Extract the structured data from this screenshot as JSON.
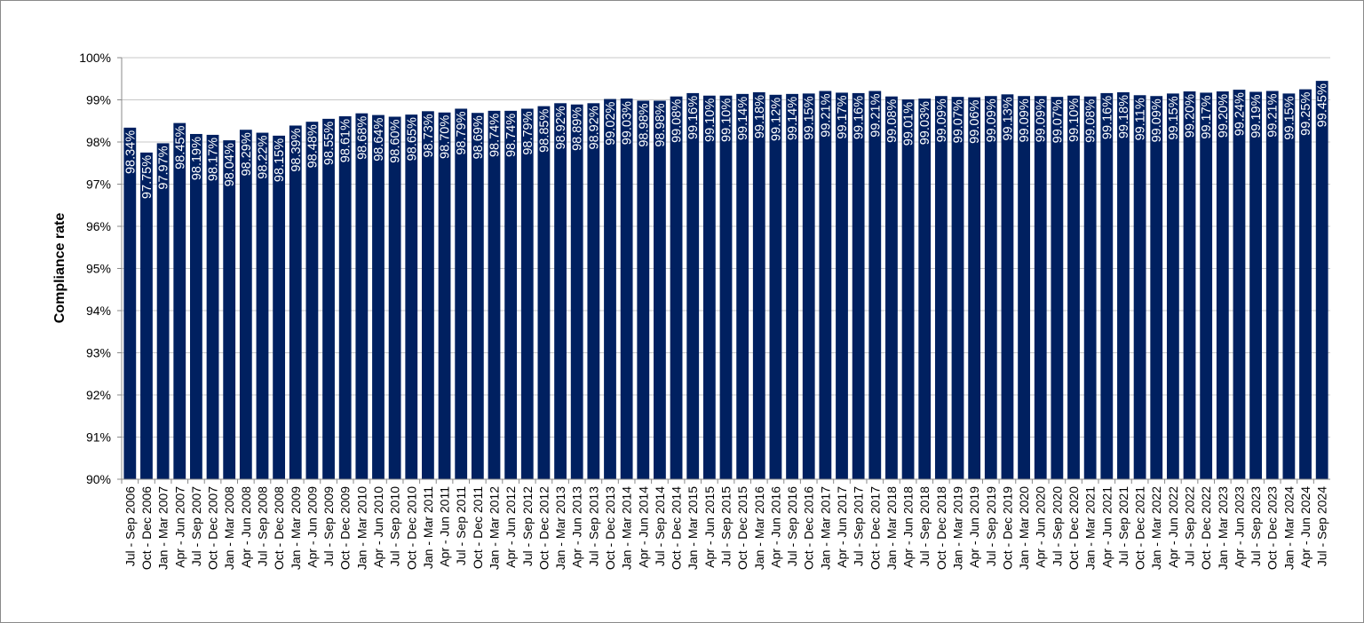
{
  "chart_data": {
    "type": "bar",
    "title": "",
    "xlabel": "",
    "ylabel": "Compliance rate",
    "ylim": [
      90,
      100
    ],
    "yticks": [
      "90%",
      "91%",
      "92%",
      "93%",
      "94%",
      "95%",
      "96%",
      "97%",
      "98%",
      "99%",
      "100%"
    ],
    "grid": true,
    "legend": "none",
    "categories": [
      "Jul - Sep 2006",
      "Oct - Dec 2006",
      "Jan - Mar 2007",
      "Apr - Jun 2007",
      "Jul - Sep 2007",
      "Oct - Dec 2007",
      "Jan - Mar 2008",
      "Apr - Jun 2008",
      "Jul - Sep 2008",
      "Oct - Dec 2008",
      "Jan - Mar 2009",
      "Apr - Jun 2009",
      "Jul - Sep 2009",
      "Oct - Dec 2009",
      "Jan - Mar 2010",
      "Apr - Jun 2010",
      "Jul - Sep 2010",
      "Oct - Dec 2010",
      "Jan - Mar 2011",
      "Apr - Jun 2011",
      "Jul - Sep 2011",
      "Oct - Dec 2011",
      "Jan - Mar 2012",
      "Apr - Jun 2012",
      "Jul - Sep 2012",
      "Oct - Dec 2012",
      "Jan - Mar 2013",
      "Apr - Jun 2013",
      "Jul - Sep 2013",
      "Oct - Dec 2013",
      "Jan - Mar 2014",
      "Apr - Jun 2014",
      "Jul - Sep 2014",
      "Oct - Dec 2014",
      "Jan - Mar 2015",
      "Apr - Jun 2015",
      "Jul - Sep 2015",
      "Oct - Dec 2015",
      "Jan - Mar 2016",
      "Apr - Jun 2016",
      "Jul - Sep 2016",
      "Oct - Dec 2016",
      "Jan - Mar 2017",
      "Apr - Jun 2017",
      "Jul - Sep 2017",
      "Oct - Dec 2017",
      "Jan - Mar 2018",
      "Apr - Jun 2018",
      "Jul - Sep 2018",
      "Oct - Dec 2018",
      "Jan - Mar 2019",
      "Apr - Jun 2019",
      "Jul - Sep 2019",
      "Oct - Dec 2019",
      "Jan - Mar 2020",
      "Apr - Jun 2020",
      "Jul - Sep 2020",
      "Oct - Dec 2020",
      "Jan - Mar 2021",
      "Apr - Jun 2021",
      "Jul - Sep 2021",
      "Oct - Dec 2021",
      "Jan - Mar 2022",
      "Apr - Jun 2022",
      "Jul - Sep 2022",
      "Oct - Dec 2022",
      "Jan - Mar 2023",
      "Apr - Jun 2023",
      "Jul - Sep 2023",
      "Oct - Dec 2023",
      "Jan - Mar 2024",
      "Apr - Jun 2024",
      "Jul - Sep 2024"
    ],
    "values": [
      98.34,
      97.75,
      97.97,
      98.45,
      98.19,
      98.17,
      98.04,
      98.29,
      98.22,
      98.15,
      98.39,
      98.48,
      98.55,
      98.61,
      98.68,
      98.64,
      98.6,
      98.65,
      98.73,
      98.7,
      98.79,
      98.69,
      98.74,
      98.74,
      98.79,
      98.85,
      98.92,
      98.89,
      98.92,
      99.02,
      99.03,
      98.98,
      98.98,
      99.08,
      99.16,
      99.1,
      99.1,
      99.14,
      99.18,
      99.12,
      99.14,
      99.15,
      99.21,
      99.17,
      99.16,
      99.21,
      99.08,
      99.01,
      99.03,
      99.09,
      99.07,
      99.06,
      99.09,
      99.13,
      99.09,
      99.09,
      99.07,
      99.1,
      99.08,
      99.16,
      99.18,
      99.11,
      99.09,
      99.15,
      99.2,
      99.17,
      99.2,
      99.24,
      99.19,
      99.21,
      99.15,
      99.25,
      99.45
    ],
    "data_labels": [
      "98.34%",
      "97.75%",
      "97.97%",
      "98.45%",
      "98.19%",
      "98.17%",
      "98.04%",
      "98.29%",
      "98.22%",
      "98.15%",
      "98.39%",
      "98.48%",
      "98.55%",
      "98.61%",
      "98.68%",
      "98.64%",
      "98.60%",
      "98.65%",
      "98.73%",
      "98.70%",
      "98.79%",
      "98.69%",
      "98.74%",
      "98.74%",
      "98.79%",
      "98.85%",
      "98.92%",
      "98.89%",
      "98.92%",
      "99.02%",
      "99.03%",
      "98.98%",
      "98.98%",
      "99.08%",
      "99.16%",
      "99.10%",
      "99.10%",
      "99.14%",
      "99.18%",
      "99.12%",
      "99.14%",
      "99.15%",
      "99.21%",
      "99.17%",
      "99.16%",
      "99.21%",
      "99.08%",
      "99.01%",
      "99.03%",
      "99.09%",
      "99.07%",
      "99.06%",
      "99.09%",
      "99.13%",
      "99.09%",
      "99.09%",
      "99.07%",
      "99.10%",
      "99.08%",
      "99.16%",
      "99.18%",
      "99.11%",
      "99.09%",
      "99.15%",
      "99.20%",
      "99.17%",
      "99.20%",
      "99.24%",
      "99.19%",
      "99.21%",
      "99.15%",
      "99.25%",
      "99.45%"
    ],
    "colors": {
      "bar": "#002060",
      "grid": "#c8c8c8",
      "axis": "#8a8a8a",
      "label": "#ffffff"
    }
  }
}
